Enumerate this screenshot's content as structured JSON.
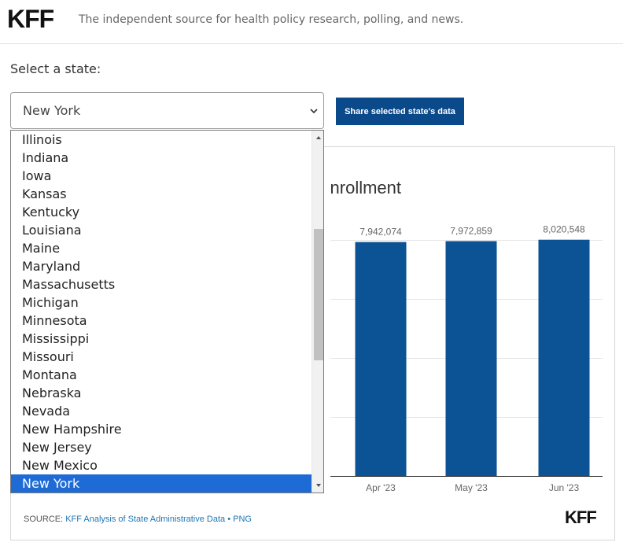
{
  "header": {
    "logo": "KFF",
    "tagline": "The independent source for health policy research, polling, and news."
  },
  "state_selector": {
    "label": "Select a state:",
    "selected": "New York",
    "visible_options": [
      "Illinois",
      "Indiana",
      "Iowa",
      "Kansas",
      "Kentucky",
      "Louisiana",
      "Maine",
      "Maryland",
      "Massachusetts",
      "Michigan",
      "Minnesota",
      "Mississippi",
      "Missouri",
      "Montana",
      "Nebraska",
      "Nevada",
      "New Hampshire",
      "New Jersey",
      "New Mexico",
      "New York"
    ]
  },
  "share_button": {
    "label": "Share selected state's data"
  },
  "chart": {
    "title_fragment": "nrollment",
    "source_label": "SOURCE:",
    "source_link": "KFF Analysis of State Administrative Data",
    "separator": "•",
    "png_link": "PNG",
    "footer_logo": "KFF"
  },
  "chart_data": {
    "type": "bar",
    "categories": [
      "Apr '23",
      "May '23",
      "Jun '23"
    ],
    "values": [
      7942074,
      7972859,
      8020548
    ],
    "value_labels": [
      "7,942,074",
      "7,972,859",
      "8,020,548"
    ],
    "bar_color": "#0b5394",
    "grid": true
  },
  "colors": {
    "accent": "#0b4a8a",
    "selected_option": "#1f6bd6",
    "link": "#1f77b4"
  }
}
